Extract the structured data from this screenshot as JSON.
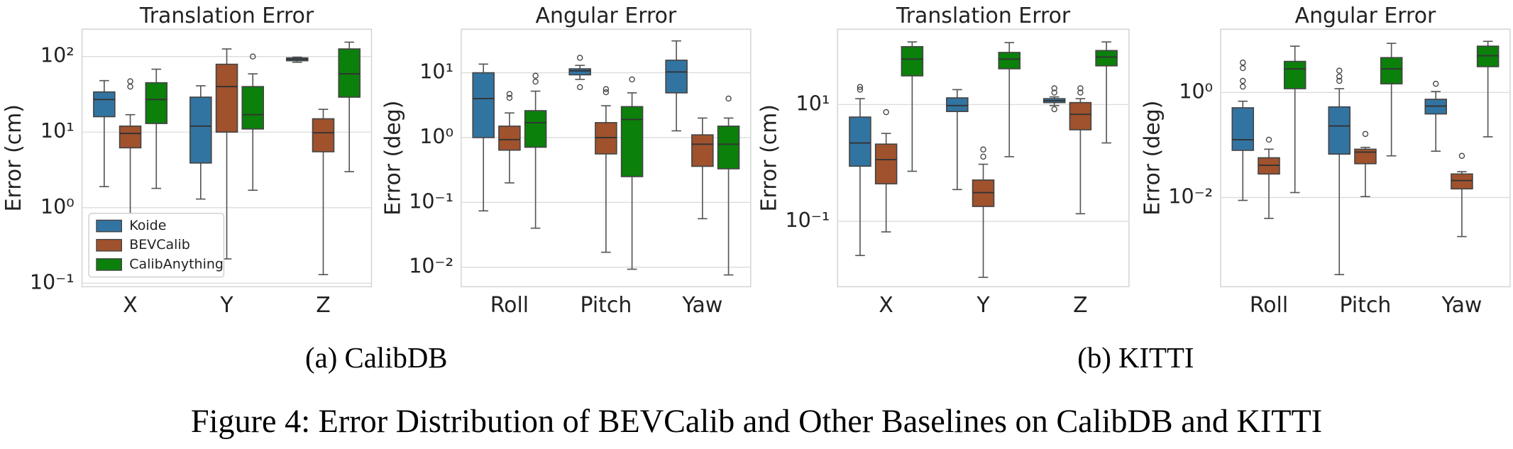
{
  "chart_data": [
    {
      "type": "box",
      "title": "Translation Error",
      "y_label": "Error (cm)",
      "log_y": true,
      "grid": true,
      "legend": "lower left",
      "ylim": [
        0.09,
        230
      ],
      "yticks": [
        {
          "value": 0.1,
          "label": "10⁻¹"
        },
        {
          "value": 1,
          "label": "10⁰"
        },
        {
          "value": 10,
          "label": "10¹"
        },
        {
          "value": 100,
          "label": "10²"
        }
      ],
      "categories": [
        "X",
        "Y",
        "Z"
      ],
      "series": [
        {
          "name": "Koide",
          "color": "#3274a1",
          "boxes": [
            {
              "whislo": 1.9,
              "q1": 16,
              "med": 27,
              "q3": 34,
              "whishi": 48
            },
            {
              "whislo": 1.3,
              "q1": 3.9,
              "med": 12,
              "q3": 29,
              "whishi": 41
            },
            {
              "whislo": 84,
              "q1": 88,
              "med": 92,
              "q3": 96,
              "whishi": 98
            }
          ]
        },
        {
          "name": "BEVCalib",
          "color": "#a0522d",
          "boxes": [
            {
              "whislo": 0.82,
              "q1": 6.2,
              "med": 9.6,
              "q3": 12,
              "whishi": 17,
              "fliers": [
                40,
                47
              ]
            },
            {
              "whislo": 0.21,
              "q1": 10,
              "med": 40,
              "q3": 79,
              "whishi": 126
            },
            {
              "whislo": 0.13,
              "q1": 5.5,
              "med": 9.8,
              "q3": 15,
              "whishi": 20
            }
          ]
        },
        {
          "name": "CalibAnything",
          "color": "#0b800b",
          "boxes": [
            {
              "whislo": 1.8,
              "q1": 13,
              "med": 27,
              "q3": 45,
              "whishi": 68
            },
            {
              "whislo": 1.7,
              "q1": 11,
              "med": 17,
              "q3": 40,
              "whishi": 59,
              "fliers": [
                100
              ]
            },
            {
              "whislo": 3.0,
              "q1": 29,
              "med": 59,
              "q3": 126,
              "whishi": 155
            }
          ]
        }
      ]
    },
    {
      "type": "box",
      "title": "Angular Error",
      "y_label": "Error (deg)",
      "log_y": true,
      "grid": true,
      "ylim": [
        0.005,
        47
      ],
      "yticks": [
        {
          "value": 0.01,
          "label": "10⁻²"
        },
        {
          "value": 0.1,
          "label": "10⁻¹"
        },
        {
          "value": 1,
          "label": "10⁰"
        },
        {
          "value": 10,
          "label": "10¹"
        }
      ],
      "categories": [
        "Roll",
        "Pitch",
        "Yaw"
      ],
      "series": [
        {
          "color": "#3274a1",
          "boxes": [
            {
              "whislo": 0.074,
              "q1": 1.0,
              "med": 4,
              "q3": 10,
              "whishi": 13.6
            },
            {
              "whislo": 7.9,
              "q1": 9.3,
              "med": 10.7,
              "q3": 11.5,
              "whishi": 13,
              "fliers": [
                6.0,
                17
              ]
            },
            {
              "whislo": 1.27,
              "q1": 4.9,
              "med": 10.3,
              "q3": 15.6,
              "whishi": 31
            }
          ]
        },
        {
          "color": "#a0522d",
          "boxes": [
            {
              "whislo": 0.2,
              "q1": 0.64,
              "med": 0.93,
              "q3": 1.5,
              "whishi": 2.4,
              "fliers": [
                4.1,
                4.7
              ]
            },
            {
              "whislo": 0.017,
              "q1": 0.56,
              "med": 1.0,
              "q3": 1.7,
              "whishi": 3.1,
              "fliers": [
                5.0,
                5.6
              ]
            },
            {
              "whislo": 0.056,
              "q1": 0.36,
              "med": 0.79,
              "q3": 1.1,
              "whishi": 2.0
            }
          ]
        },
        {
          "color": "#0b800b",
          "boxes": [
            {
              "whislo": 0.04,
              "q1": 0.71,
              "med": 1.7,
              "q3": 2.6,
              "whishi": 5.2,
              "fliers": [
                7.3,
                9.0
              ]
            },
            {
              "whislo": 0.0093,
              "q1": 0.25,
              "med": 1.9,
              "q3": 3.0,
              "whishi": 4.9,
              "fliers": [
                7.9
              ]
            },
            {
              "whislo": 0.0076,
              "q1": 0.33,
              "med": 0.79,
              "q3": 1.5,
              "whishi": 2.0,
              "fliers": [
                4.0
              ]
            }
          ]
        }
      ]
    },
    {
      "type": "box",
      "title": "Translation Error",
      "y_label": "Error (cm)",
      "log_y": true,
      "grid": true,
      "ylim": [
        0.0076,
        195
      ],
      "yticks": [
        {
          "value": 0.1,
          "label": "10⁻¹"
        },
        {
          "value": 10,
          "label": "10¹"
        }
      ],
      "categories": [
        "X",
        "Y",
        "Z"
      ],
      "series": [
        {
          "color": "#3274a1",
          "boxes": [
            {
              "whislo": 0.026,
              "q1": 0.88,
              "med": 2.2,
              "q3": 6.1,
              "whishi": 12.6,
              "fliers": [
                18,
                20
              ]
            },
            {
              "whislo": 0.35,
              "q1": 7.6,
              "med": 9.6,
              "q3": 13,
              "whishi": 18
            },
            {
              "whislo": 9.6,
              "q1": 10.8,
              "med": 11.6,
              "q3": 12.6,
              "whishi": 13.5,
              "fliers": [
                8.3,
                16,
                19
              ]
            }
          ]
        },
        {
          "color": "#a0522d",
          "boxes": [
            {
              "whislo": 0.066,
              "q1": 0.44,
              "med": 1.14,
              "q3": 2.1,
              "whishi": 3.2,
              "fliers": [
                7.4
              ]
            },
            {
              "whislo": 0.011,
              "q1": 0.18,
              "med": 0.31,
              "q3": 0.51,
              "whishi": 0.95,
              "fliers": [
                1.28,
                1.7
              ]
            },
            {
              "whislo": 0.135,
              "q1": 3.7,
              "med": 6.8,
              "q3": 10.8,
              "whishi": 12.6,
              "fliers": [
                16,
                19
              ]
            }
          ]
        },
        {
          "color": "#0b800b",
          "boxes": [
            {
              "whislo": 0.72,
              "q1": 31,
              "med": 60,
              "q3": 98,
              "whishi": 118
            },
            {
              "whislo": 1.28,
              "q1": 41,
              "med": 60,
              "q3": 78,
              "whishi": 115
            },
            {
              "whislo": 2.2,
              "q1": 46,
              "med": 65,
              "q3": 84,
              "whishi": 118
            }
          ]
        }
      ]
    },
    {
      "type": "box",
      "title": "Angular Error",
      "y_label": "Error (deg)",
      "log_y": true,
      "grid": true,
      "ylim": [
        0.0002,
        16
      ],
      "yticks": [
        {
          "value": 0.01,
          "label": "10⁻²"
        },
        {
          "value": 1,
          "label": "10⁰"
        }
      ],
      "categories": [
        "Roll",
        "Pitch",
        "Yaw"
      ],
      "series": [
        {
          "color": "#3274a1",
          "boxes": [
            {
              "whislo": 0.0088,
              "q1": 0.079,
              "med": 0.126,
              "q3": 0.51,
              "whishi": 0.68,
              "fliers": [
                1.29,
                1.66,
                2.9,
                3.7
              ]
            },
            {
              "whislo": 0.00034,
              "q1": 0.067,
              "med": 0.23,
              "q3": 0.53,
              "whishi": 1.18,
              "fliers": [
                1.66,
                2.0,
                2.6
              ]
            },
            {
              "whislo": 0.076,
              "q1": 0.39,
              "med": 0.55,
              "q3": 0.74,
              "whishi": 1.04,
              "fliers": [
                1.46
              ]
            }
          ]
        },
        {
          "color": "#a0522d",
          "boxes": [
            {
              "whislo": 0.004,
              "q1": 0.028,
              "med": 0.041,
              "q3": 0.057,
              "whishi": 0.083,
              "fliers": [
                0.126
              ]
            },
            {
              "whislo": 0.0104,
              "q1": 0.044,
              "med": 0.073,
              "q3": 0.083,
              "whishi": 0.09,
              "fliers": [
                0.162
              ]
            },
            {
              "whislo": 0.0018,
              "q1": 0.0146,
              "med": 0.021,
              "q3": 0.028,
              "whishi": 0.031,
              "fliers": [
                0.062
              ]
            }
          ]
        },
        {
          "color": "#0b800b",
          "boxes": [
            {
              "whislo": 0.0124,
              "q1": 1.18,
              "med": 2.8,
              "q3": 3.9,
              "whishi": 7.6
            },
            {
              "whislo": 0.062,
              "q1": 1.46,
              "med": 2.8,
              "q3": 4.6,
              "whishi": 8.6
            },
            {
              "whislo": 0.143,
              "q1": 3.1,
              "med": 5.0,
              "q3": 7.6,
              "whishi": 9.4
            }
          ]
        }
      ]
    }
  ],
  "subcaptions": [
    "(a) CalibDB",
    "(b) KITTI"
  ],
  "caption": "Figure 4: Error Distribution of BEVCalib and Other Baselines on CalibDB and KITTI"
}
